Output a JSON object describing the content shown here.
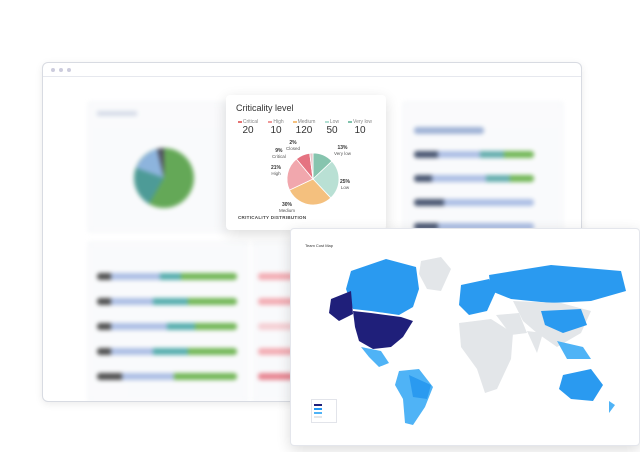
{
  "criticality": {
    "title": "Criticality level",
    "levels": [
      {
        "label": "Critical",
        "value": "20",
        "color": "#e57373"
      },
      {
        "label": "High",
        "value": "10",
        "color": "#ef9a9a"
      },
      {
        "label": "Medium",
        "value": "120",
        "color": "#f6c27f"
      },
      {
        "label": "Low",
        "value": "50",
        "color": "#b2dfd3"
      },
      {
        "label": "Very low",
        "value": "10",
        "color": "#81c3ad"
      }
    ],
    "slices": [
      {
        "label": "Very low",
        "pct": "13%",
        "value": 13,
        "color": "#86c4ae"
      },
      {
        "label": "Low",
        "pct": "25%",
        "value": 25,
        "color": "#b9e0d4"
      },
      {
        "label": "Medium",
        "pct": "30%",
        "value": 30,
        "color": "#f4c07e"
      },
      {
        "label": "High",
        "pct": "21%",
        "value": 21,
        "color": "#f1a7ad"
      },
      {
        "label": "Critical",
        "pct": "9%",
        "value": 9,
        "color": "#e57381"
      },
      {
        "label": "Closed",
        "pct": "2%",
        "value": 2,
        "color": "#e7c7cc"
      }
    ],
    "footer": "CRITICALITY DISTRIBUTION"
  },
  "map": {
    "title": "Team Cost Map",
    "colors": {
      "dark": "#1f1f7a",
      "mid": "#2196f3",
      "light": "#4fb3f6",
      "none": "#e3e6e9"
    }
  }
}
